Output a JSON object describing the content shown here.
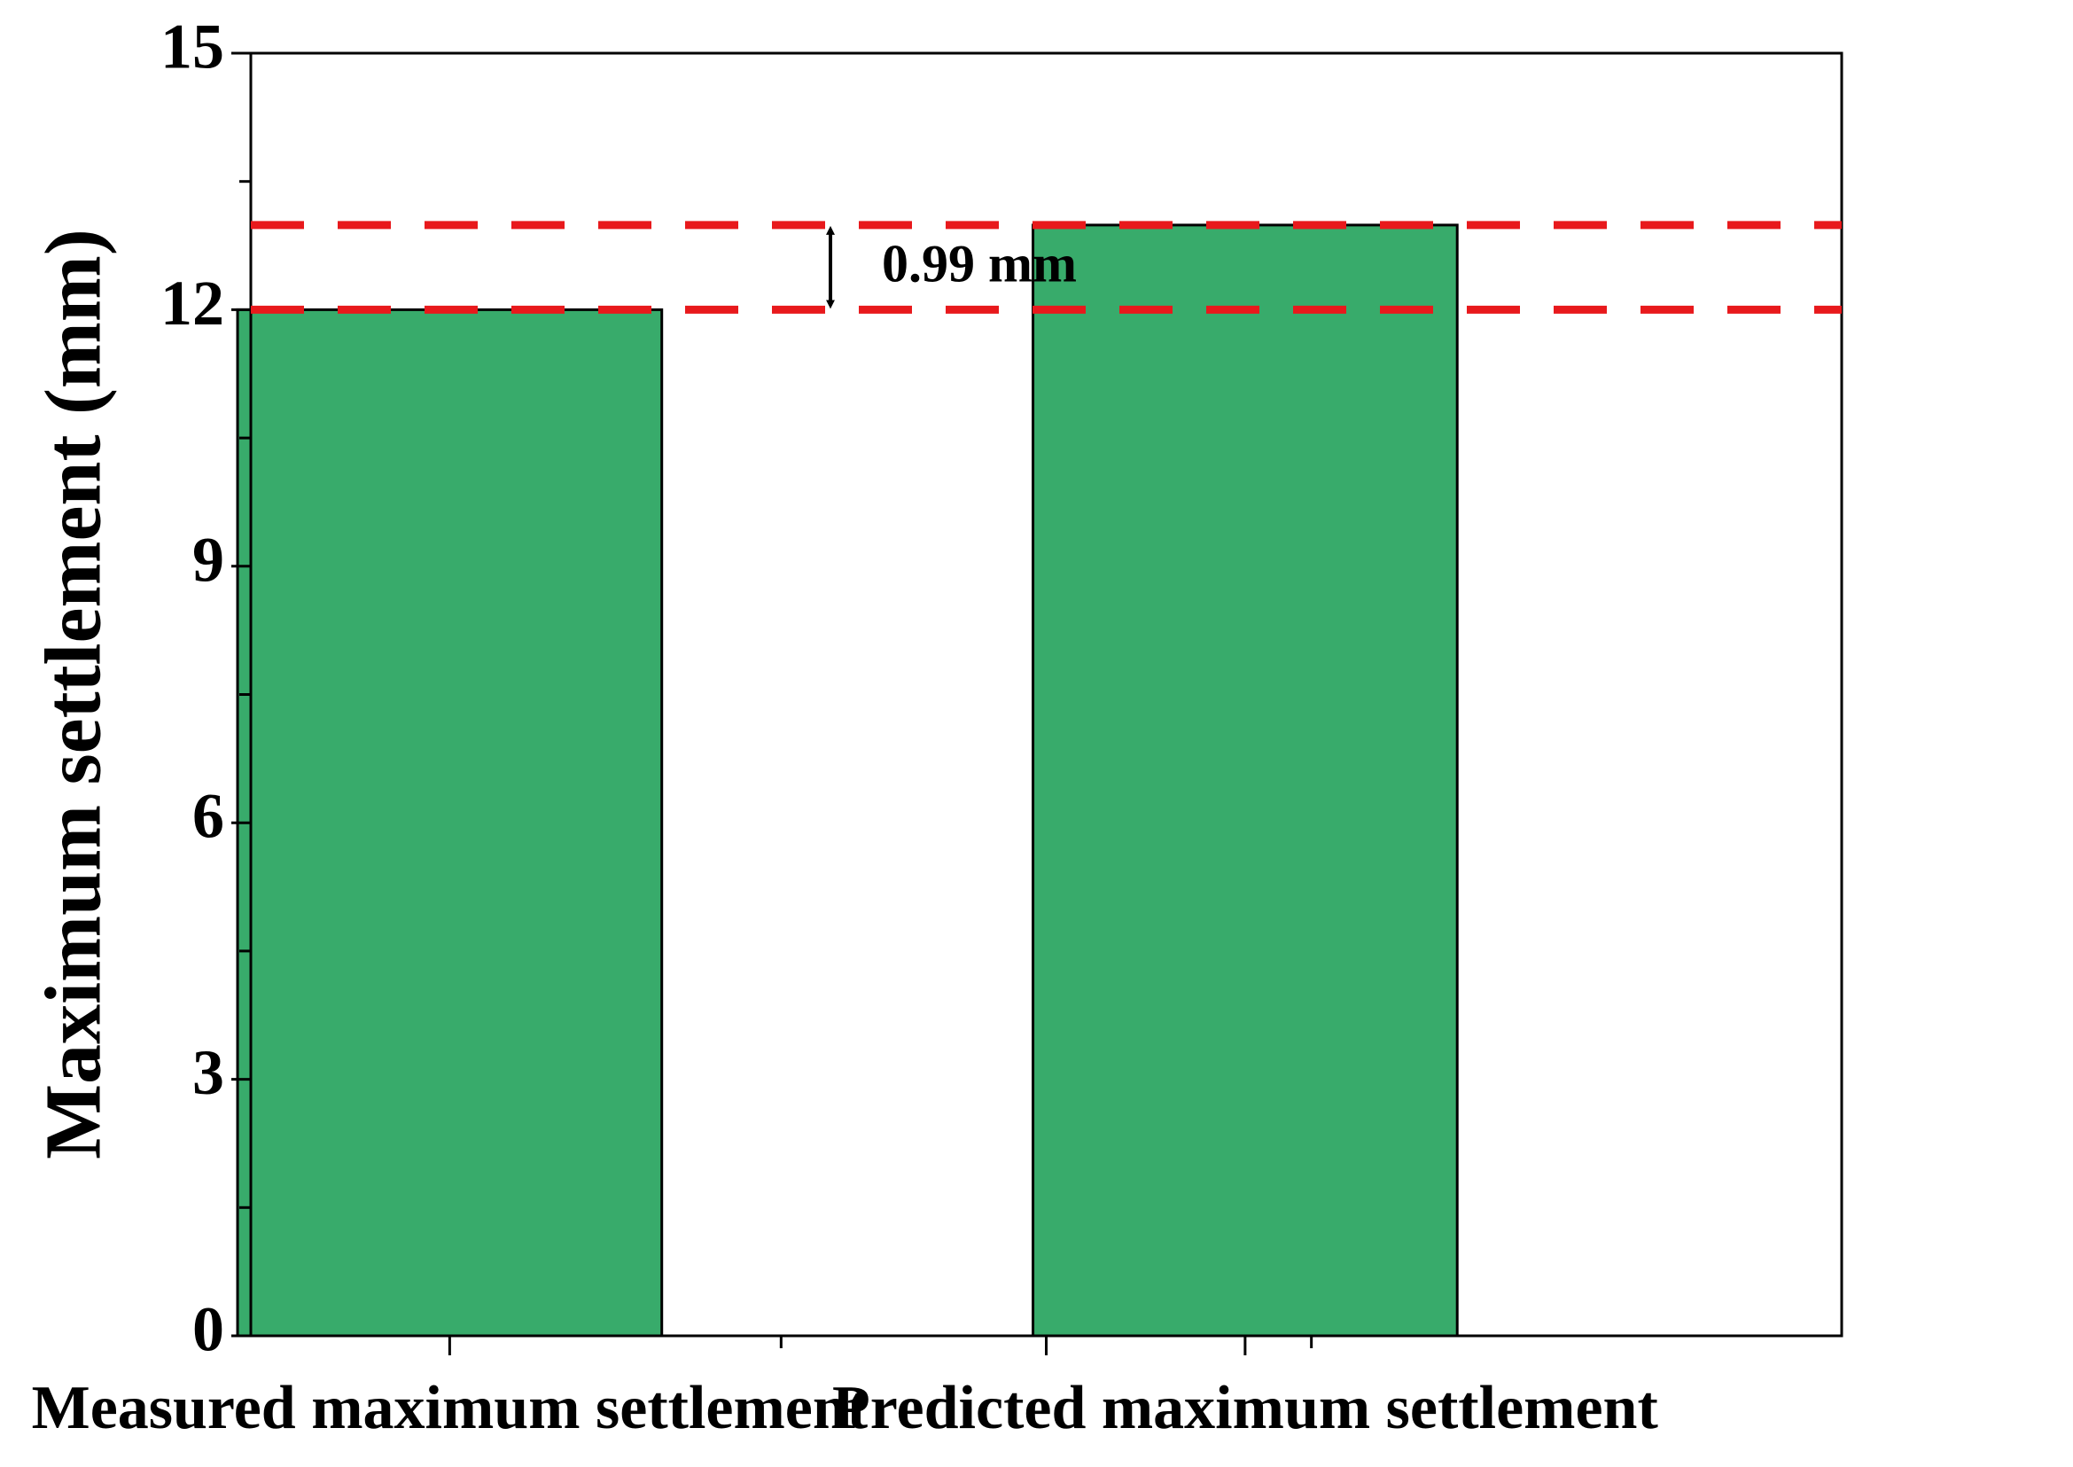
{
  "chart_data": {
    "type": "bar",
    "y_label": "Maximum settlement (mm)",
    "categories": [
      "Measured maximum settlement",
      "Predicted maximum settlement"
    ],
    "values": [
      12,
      12.99
    ],
    "color": "#38ab6b",
    "ylim": [
      0,
      15
    ],
    "yticks": [
      0,
      3,
      6,
      9,
      12,
      15
    ],
    "reference_lines": [
      12,
      12.99
    ],
    "reference_color": "#e8191c",
    "annotation": "0.99 mm"
  }
}
